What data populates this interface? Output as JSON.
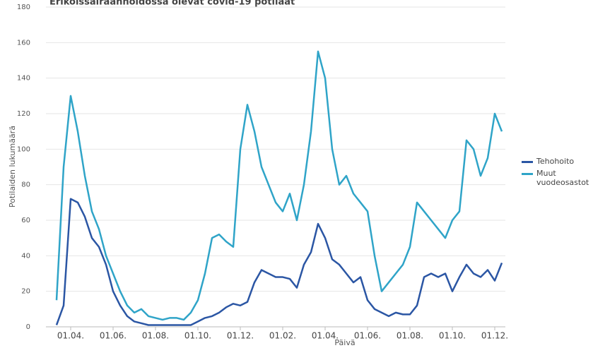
{
  "chart_data": {
    "type": "line",
    "title": "Erikoissairaanhoidossa olevat covid-19 potilaat",
    "x_label": "Päivä",
    "y_label": "Potilaiden lukumäärä",
    "categories": [
      null,
      null,
      "01.04.",
      null,
      null,
      null,
      null,
      null,
      "01.06.",
      null,
      null,
      null,
      null,
      null,
      "01.08.",
      null,
      null,
      null,
      null,
      null,
      "01.10.",
      null,
      null,
      null,
      null,
      null,
      "01.12.",
      null,
      null,
      null,
      null,
      null,
      "01.02.",
      null,
      null,
      null,
      null,
      null,
      "01.04.",
      null,
      null,
      null,
      null,
      null,
      "01.06.",
      null,
      null,
      null,
      null,
      null,
      "01.08.",
      null,
      null,
      null,
      null,
      null,
      "01.10.",
      null,
      null,
      null,
      null,
      null,
      "01.12.",
      null
    ],
    "series": [
      {
        "name": "Tehohoito",
        "color": "#2b56a4",
        "values": [
          1,
          12,
          72,
          70,
          62,
          50,
          45,
          35,
          20,
          12,
          6,
          3,
          2,
          1,
          1,
          1,
          1,
          1,
          1,
          1,
          3,
          5,
          6,
          8,
          11,
          13,
          12,
          14,
          25,
          32,
          30,
          28,
          28,
          27,
          22,
          35,
          42,
          58,
          50,
          38,
          35,
          30,
          25,
          28,
          15,
          10,
          8,
          6,
          8,
          7,
          7,
          12,
          28,
          30,
          28,
          30,
          20,
          28,
          35,
          30,
          28,
          32,
          26,
          36
        ]
      },
      {
        "name": "Muut vuodeosastot",
        "color": "#2fa4c8",
        "values": [
          15,
          90,
          130,
          110,
          85,
          65,
          55,
          40,
          30,
          20,
          12,
          8,
          10,
          6,
          5,
          4,
          5,
          5,
          4,
          8,
          15,
          30,
          50,
          52,
          48,
          45,
          100,
          125,
          110,
          90,
          80,
          70,
          65,
          75,
          60,
          80,
          110,
          155,
          140,
          100,
          80,
          85,
          75,
          70,
          65,
          40,
          20,
          25,
          30,
          35,
          45,
          70,
          65,
          60,
          55,
          50,
          60,
          65,
          105,
          100,
          85,
          95,
          120,
          110
        ]
      }
    ],
    "ylim": [
      0,
      180
    ],
    "yticks": [
      0,
      20,
      40,
      60,
      80,
      100,
      120,
      140,
      160,
      180
    ],
    "grid": true
  }
}
